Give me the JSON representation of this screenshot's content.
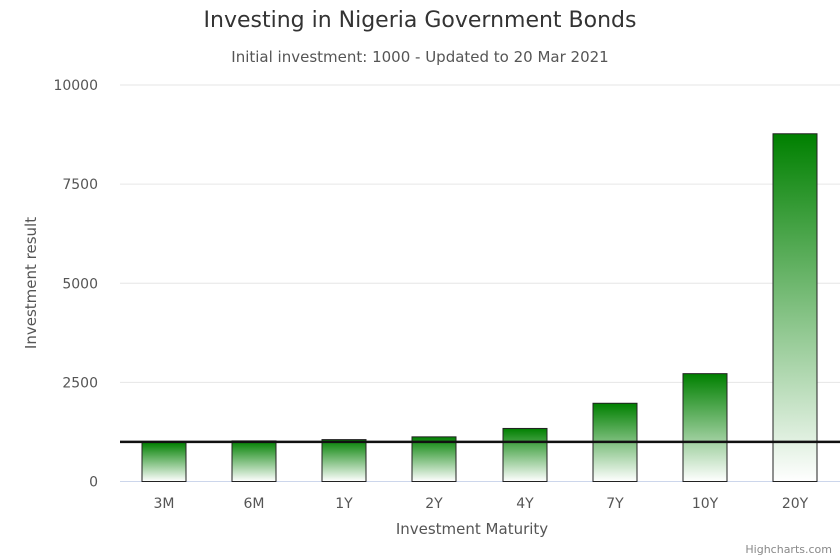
{
  "chart_data": {
    "type": "bar",
    "title": "Investing in Nigeria Government Bonds",
    "subtitle": "Initial investment: 1000 - Updated to 20 Mar 2021",
    "xlabel": "Investment Maturity",
    "ylabel": "Investment result",
    "categories": [
      "3M",
      "6M",
      "1Y",
      "2Y",
      "4Y",
      "7Y",
      "10Y",
      "20Y"
    ],
    "values": [
      985,
      1024,
      1057,
      1126,
      1338,
      1973,
      2720,
      8770
    ],
    "ylim": [
      0,
      10000
    ],
    "yticks": [
      0,
      2500,
      5000,
      7500,
      10000
    ],
    "reference_line": 1000,
    "grid": true,
    "legend": "none",
    "colors": {
      "bar_top": "#008000",
      "bar_bottom": "#ffffff",
      "bar_border": "#222222",
      "reference_line": "#111111"
    }
  },
  "credit": "Highcharts.com"
}
